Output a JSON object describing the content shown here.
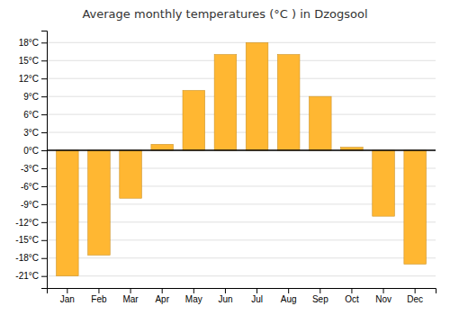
{
  "chart_data": {
    "type": "bar",
    "title": "Average monthly temperatures (°C ) in Dzogsool",
    "categories": [
      "Jan",
      "Feb",
      "Mar",
      "Apr",
      "May",
      "Jun",
      "Jul",
      "Aug",
      "Sep",
      "Oct",
      "Nov",
      "Dec"
    ],
    "values": [
      -21,
      -17.5,
      -8,
      1,
      10,
      16,
      18,
      16,
      9,
      0.5,
      -11,
      -19
    ],
    "color": "#FFB732",
    "ylim": [
      -23,
      20
    ],
    "yticks": [
      {
        "value": -21,
        "label": "-21°C"
      },
      {
        "value": -18,
        "label": "-18°C"
      },
      {
        "value": -15,
        "label": "-15°C"
      },
      {
        "value": -12,
        "label": "-12°C"
      },
      {
        "value": -9,
        "label": "-9°C"
      },
      {
        "value": -6,
        "label": "-6°C"
      },
      {
        "value": -3,
        "label": "-3°C"
      },
      {
        "value": 0,
        "label": "0°C"
      },
      {
        "value": 3,
        "label": "3°C"
      },
      {
        "value": 6,
        "label": "6°C"
      },
      {
        "value": 9,
        "label": "9°C"
      },
      {
        "value": 12,
        "label": "12°C"
      },
      {
        "value": 15,
        "label": "15°C"
      },
      {
        "value": 18,
        "label": "18°C"
      }
    ],
    "grid": true
  }
}
